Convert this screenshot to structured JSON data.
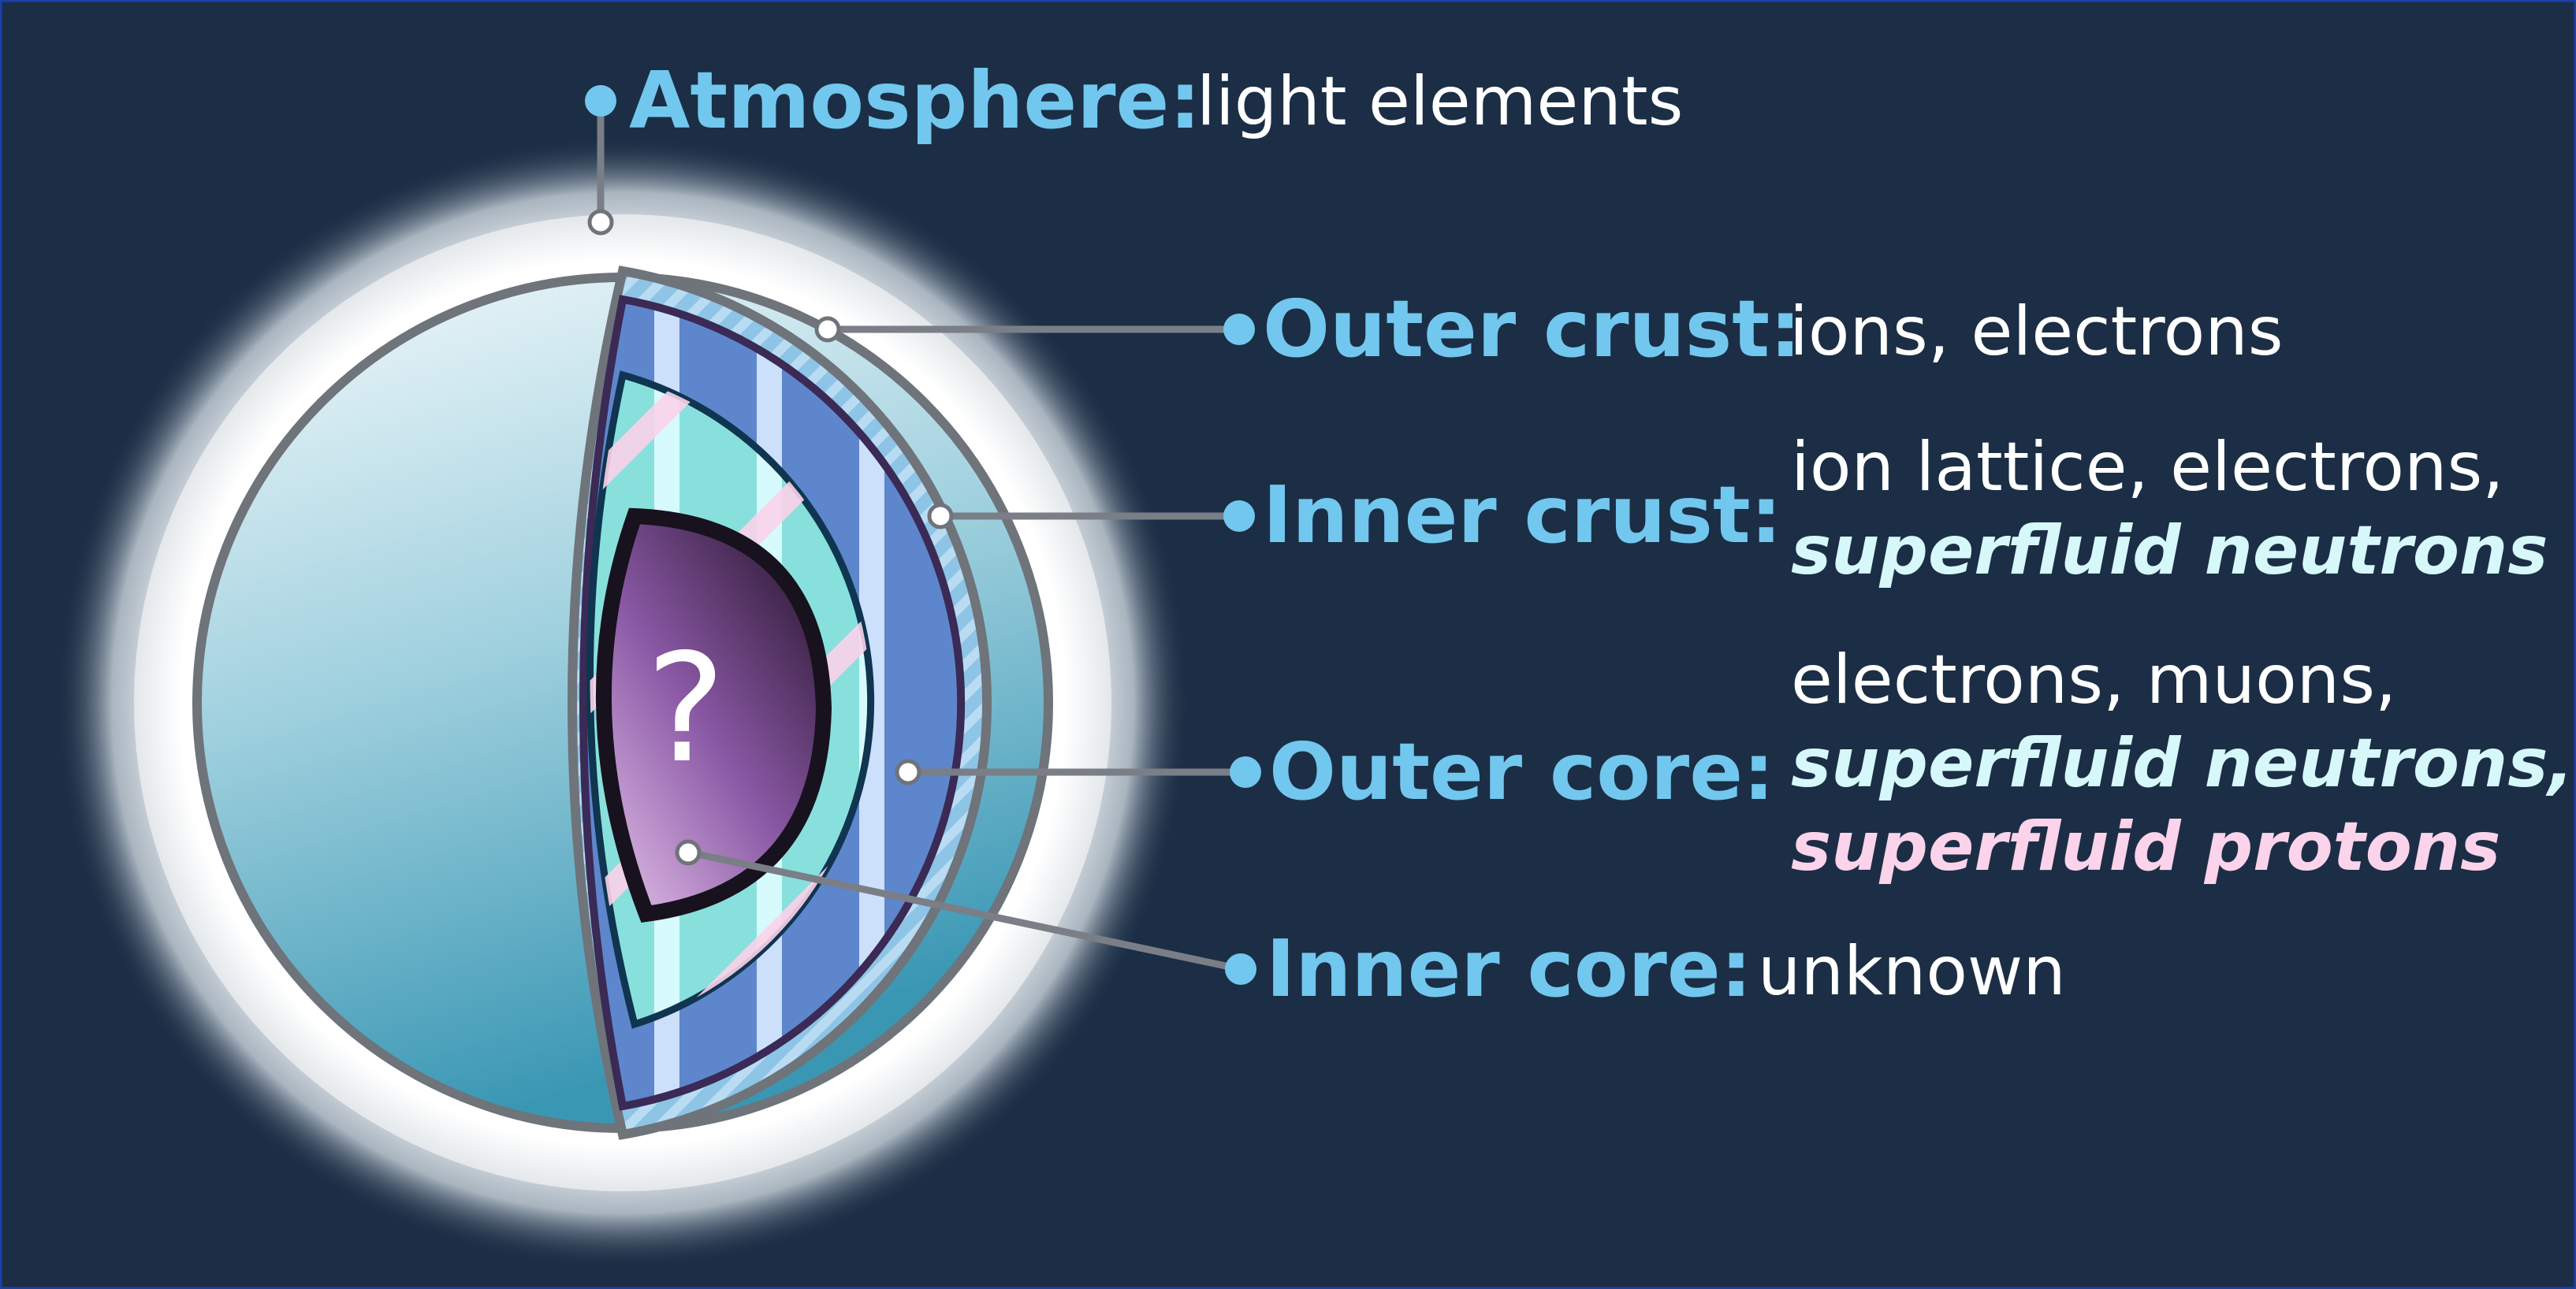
{
  "diagram": {
    "core_symbol": "?",
    "layers": [
      {
        "id": "atmosphere",
        "name": "Atmosphere:",
        "lines": [
          {
            "text": "light elements",
            "style": "plain"
          }
        ]
      },
      {
        "id": "outer-crust",
        "name": "Outer crust:",
        "lines": [
          {
            "text": "ions, electrons",
            "style": "plain"
          }
        ]
      },
      {
        "id": "inner-crust",
        "name": "Inner crust:",
        "lines": [
          {
            "text": "ion lattice, electrons,",
            "style": "plain"
          },
          {
            "text": "superfluid neutrons",
            "style": "neutron"
          }
        ]
      },
      {
        "id": "outer-core",
        "name": "Outer core:",
        "lines": [
          {
            "text": "electrons, muons,",
            "style": "plain"
          },
          {
            "text": "superfluid neutrons,",
            "style": "neutron"
          },
          {
            "text": "superfluid protons",
            "style": "proton"
          }
        ]
      },
      {
        "id": "inner-core",
        "name": "Inner core:",
        "lines": [
          {
            "text": "unknown",
            "style": "plain"
          }
        ]
      }
    ]
  },
  "colors": {
    "background": "#1b2e45",
    "label_name": "#72c7ee",
    "label_text": "#ffffff",
    "superfluid_neutrons": "#d6f8fb",
    "superfluid_protons": "#fbd3ea",
    "leader_line": "#7a7e86",
    "outer_crust": "#5e86cc",
    "inner_crust": "#88e0dc",
    "inner_core": "#8c5aa6",
    "surface_light": "#eef7fa",
    "surface_dark": "#3a99b6"
  }
}
